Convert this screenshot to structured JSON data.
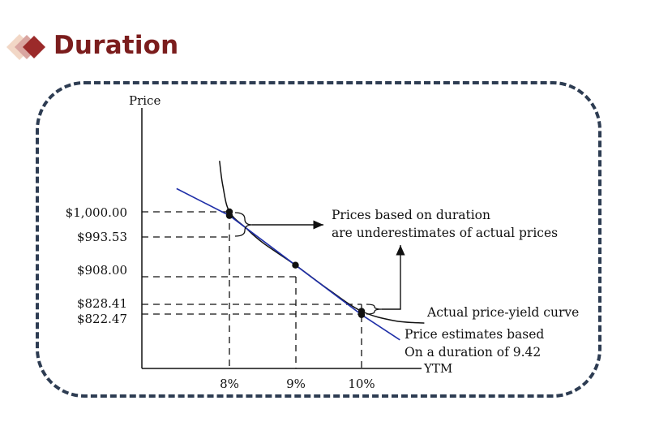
{
  "slide": {
    "title": "Duration"
  },
  "icons": {
    "logo": "diamond-logo-icon"
  },
  "colors": {
    "title": "#7b1d1d",
    "frame": "#2d3c52",
    "duration_line": "#1f2fa8",
    "curve": "#111111"
  },
  "chart_data": {
    "type": "line",
    "title": "",
    "xlabel": "YTM",
    "ylabel": "Price",
    "x_ticks": [
      "8%",
      "9%",
      "10%"
    ],
    "y_ticks": [
      "$1,000.00",
      "$993.53",
      "$908.00",
      "$828.41",
      "$822.47"
    ],
    "y_tick_values": [
      1000.0,
      993.53,
      908.0,
      828.41,
      822.47
    ],
    "series": [
      {
        "name": "Actual price-yield curve",
        "x": [
          7.85,
          7.9,
          8.0,
          8.25,
          8.5,
          9.0,
          9.5,
          10.0,
          10.5,
          10.95
        ],
        "y": [
          1088,
          1045,
          1000,
          972,
          947,
          908,
          866,
          828.41,
          812,
          808
        ]
      },
      {
        "name": "Price estimates based On a duration of 9.42",
        "x": [
          7.2,
          8.0,
          9.0,
          10.0,
          10.58
        ],
        "y": [
          1040,
          993.53,
          908.0,
          822.47,
          779
        ]
      }
    ],
    "points": [
      {
        "x": 8.0,
        "y": 1000.0
      },
      {
        "x": 8.0,
        "y": 993.53
      },
      {
        "x": 9.0,
        "y": 908.0
      },
      {
        "x": 10.0,
        "y": 828.41
      },
      {
        "x": 10.0,
        "y": 822.47
      }
    ],
    "annotations": {
      "underestimate_line1": "Prices based on duration",
      "underestimate_line2": "are underestimates of actual prices",
      "curve_label": "Actual price-yield curve",
      "estimate_line1": "Price estimates based",
      "estimate_line2": "On a duration of 9.42"
    }
  }
}
